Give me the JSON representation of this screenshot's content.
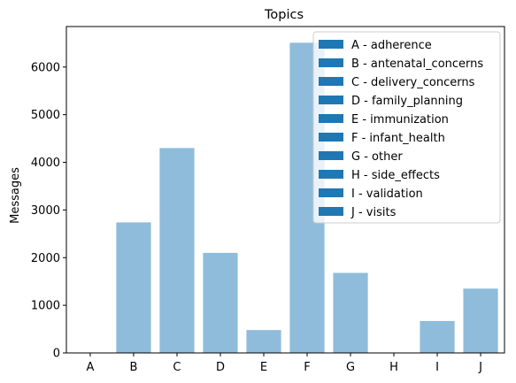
{
  "chart_data": {
    "type": "bar",
    "title": "Topics",
    "xlabel": "",
    "ylabel": "Messages",
    "categories": [
      "A",
      "B",
      "C",
      "D",
      "E",
      "F",
      "G",
      "H",
      "I",
      "J"
    ],
    "values": [
      0,
      2740,
      4300,
      2100,
      480,
      6510,
      1680,
      0,
      670,
      1350
    ],
    "ylim": [
      0,
      6850
    ],
    "yticks": [
      0,
      1000,
      2000,
      3000,
      4000,
      5000,
      6000
    ],
    "bar_color": "#8fbcdb",
    "legend_color": "#1f77b4",
    "legend_position": "upper-right",
    "legend": [
      "A - adherence",
      "B - antenatal_concerns",
      "C - delivery_concerns",
      "D - family_planning",
      "E - immunization",
      "F - infant_health",
      "G - other",
      "H - side_effects",
      "I - validation",
      "J - visits"
    ],
    "grid": false
  }
}
